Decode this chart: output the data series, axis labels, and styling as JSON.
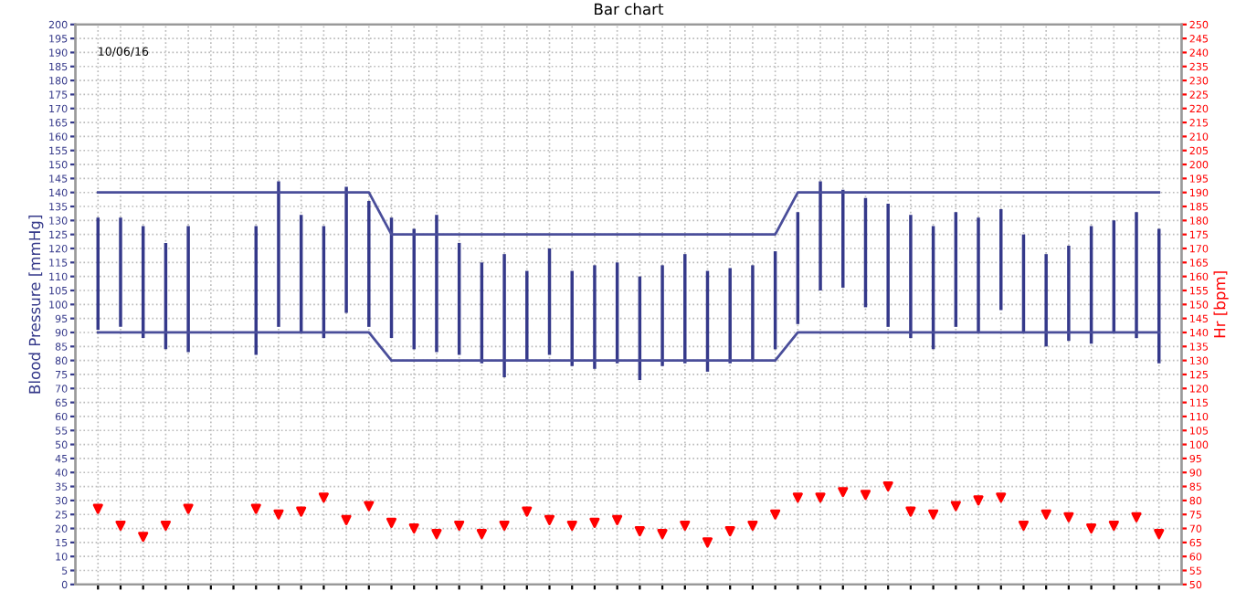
{
  "chart_data": {
    "type": "bar",
    "title": "Bar chart",
    "ylabel": "Blood Pressure [mmHg]",
    "y2label": "Hr [bpm]",
    "annotations": [
      "10/06/16"
    ],
    "categories": [
      null,
      null,
      null,
      null,
      null,
      null,
      null,
      null,
      null,
      null,
      null,
      null,
      null,
      null,
      null,
      null,
      null,
      null,
      null,
      null,
      null,
      null,
      null,
      null,
      null,
      null,
      null,
      null,
      null,
      null,
      null,
      null,
      null,
      null,
      null,
      null,
      null,
      null,
      null,
      null,
      null,
      null,
      null,
      null,
      null,
      null,
      null,
      null
    ],
    "series": [
      {
        "color": "#35398a",
        "base": [
          91,
          92,
          88,
          84,
          83,
          null,
          null,
          82,
          92,
          90,
          88,
          97,
          92,
          88,
          84,
          83,
          82,
          79,
          74,
          80,
          82,
          78,
          77,
          79,
          73,
          78,
          79,
          76,
          79,
          80,
          84,
          93,
          105,
          106,
          99,
          92,
          88,
          84,
          92,
          90,
          98,
          90,
          85,
          87,
          86,
          90,
          88,
          79
        ],
        "values": [
          40,
          39,
          40,
          38,
          45,
          null,
          null,
          46,
          52,
          42,
          40,
          45,
          45,
          43,
          43,
          49,
          40,
          36,
          44,
          32,
          38,
          34,
          37,
          36,
          37,
          36,
          39,
          36,
          34,
          34,
          35,
          40,
          39,
          35,
          39,
          44,
          44,
          44,
          41,
          41,
          36,
          35,
          33,
          34,
          42,
          40,
          45,
          48
        ]
      },
      {
        "type": "line",
        "color": "#4a4e9a",
        "values": [
          140,
          140,
          140,
          140,
          140,
          140,
          140,
          140,
          140,
          140,
          140,
          140,
          140,
          125,
          125,
          125,
          125,
          125,
          125,
          125,
          125,
          125,
          125,
          125,
          125,
          125,
          125,
          125,
          125,
          125,
          125,
          140,
          140,
          140,
          140,
          140,
          140,
          140,
          140,
          140,
          140,
          140,
          140,
          140,
          140,
          140,
          140,
          140
        ]
      },
      {
        "type": "line",
        "color": "#4a4e9a",
        "values": [
          90,
          90,
          90,
          90,
          90,
          90,
          90,
          90,
          90,
          90,
          90,
          90,
          90,
          80,
          80,
          80,
          80,
          80,
          80,
          80,
          80,
          80,
          80,
          80,
          80,
          80,
          80,
          80,
          80,
          80,
          80,
          90,
          90,
          90,
          90,
          90,
          90,
          90,
          90,
          90,
          90,
          90,
          90,
          90,
          90,
          90,
          90,
          90
        ]
      },
      {
        "type": "scatter",
        "axis": "y2",
        "color": "#ff0000",
        "marker": "triangle",
        "values": [
          77,
          71,
          67,
          71,
          77,
          null,
          null,
          77,
          75,
          76,
          81,
          73,
          78,
          72,
          70,
          68,
          71,
          68,
          71,
          76,
          73,
          71,
          72,
          73,
          69,
          68,
          71,
          65,
          69,
          71,
          75,
          81,
          81,
          83,
          82,
          85,
          76,
          75,
          78,
          80,
          81,
          71,
          75,
          74,
          70,
          71,
          74,
          68
        ]
      }
    ],
    "ylim": [
      0,
      200
    ],
    "yticks": [
      0,
      5,
      10,
      15,
      20,
      25,
      30,
      35,
      40,
      45,
      50,
      55,
      60,
      65,
      70,
      75,
      80,
      85,
      90,
      95,
      100,
      105,
      110,
      115,
      120,
      125,
      130,
      135,
      140,
      145,
      150,
      155,
      160,
      165,
      170,
      175,
      180,
      185,
      190,
      195,
      200
    ],
    "y2lim": [
      50,
      250
    ],
    "y2ticks": [
      50,
      55,
      60,
      65,
      70,
      75,
      80,
      85,
      90,
      95,
      100,
      105,
      110,
      115,
      120,
      125,
      130,
      135,
      140,
      145,
      150,
      155,
      160,
      165,
      170,
      175,
      180,
      185,
      190,
      195,
      200,
      205,
      210,
      215,
      220,
      225,
      230,
      235,
      240,
      245,
      250
    ],
    "grid": true,
    "legend": false
  }
}
